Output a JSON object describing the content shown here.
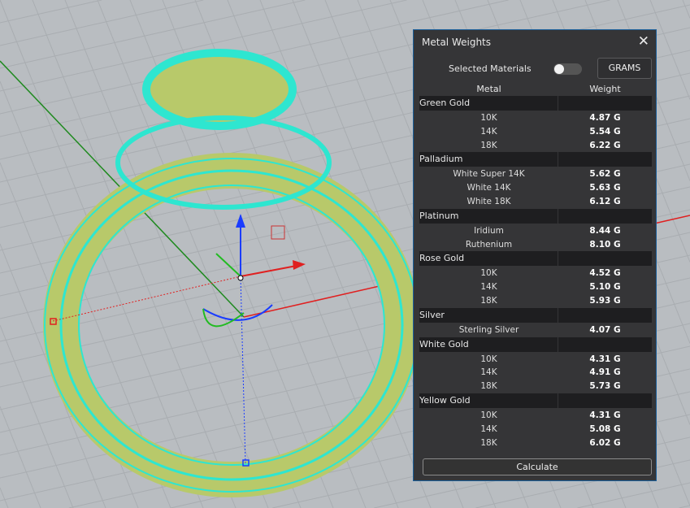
{
  "panel": {
    "title": "Metal Weights",
    "close_icon": "close-icon",
    "selected_materials_label": "Selected Materials",
    "selected_materials_on": false,
    "units_button": "GRAMS",
    "col_metal": "Metal",
    "col_weight": "Weight",
    "calculate_label": "Calculate"
  },
  "groups": [
    {
      "name": "Green Gold",
      "items": [
        {
          "metal": "10K",
          "weight": "4.87 G"
        },
        {
          "metal": "14K",
          "weight": "5.54 G"
        },
        {
          "metal": "18K",
          "weight": "6.22 G"
        }
      ]
    },
    {
      "name": "Palladium",
      "items": [
        {
          "metal": "White Super 14K",
          "weight": "5.62 G"
        },
        {
          "metal": "White 14K",
          "weight": "5.63 G"
        },
        {
          "metal": "White 18K",
          "weight": "6.12 G"
        }
      ]
    },
    {
      "name": "Platinum",
      "items": [
        {
          "metal": "Iridium",
          "weight": "8.44 G"
        },
        {
          "metal": "Ruthenium",
          "weight": "8.10 G"
        }
      ]
    },
    {
      "name": "Rose Gold",
      "items": [
        {
          "metal": "10K",
          "weight": "4.52 G"
        },
        {
          "metal": "14K",
          "weight": "5.10 G"
        },
        {
          "metal": "18K",
          "weight": "5.93 G"
        }
      ]
    },
    {
      "name": "Silver",
      "items": [
        {
          "metal": "Sterling Silver",
          "weight": "4.07 G"
        }
      ]
    },
    {
      "name": "White Gold",
      "items": [
        {
          "metal": "10K",
          "weight": "4.31 G"
        },
        {
          "metal": "14K",
          "weight": "4.91 G"
        },
        {
          "metal": "18K",
          "weight": "5.73 G"
        }
      ]
    },
    {
      "name": "Yellow Gold",
      "items": [
        {
          "metal": "10K",
          "weight": "4.31 G"
        },
        {
          "metal": "14K",
          "weight": "5.08 G"
        },
        {
          "metal": "18K",
          "weight": "6.02 G"
        }
      ]
    }
  ],
  "colors": {
    "viewport_bg": "#b9bdc1",
    "panel_bg": "#353537",
    "wire": "#2ee6d0",
    "ring": "#b8c96a"
  }
}
